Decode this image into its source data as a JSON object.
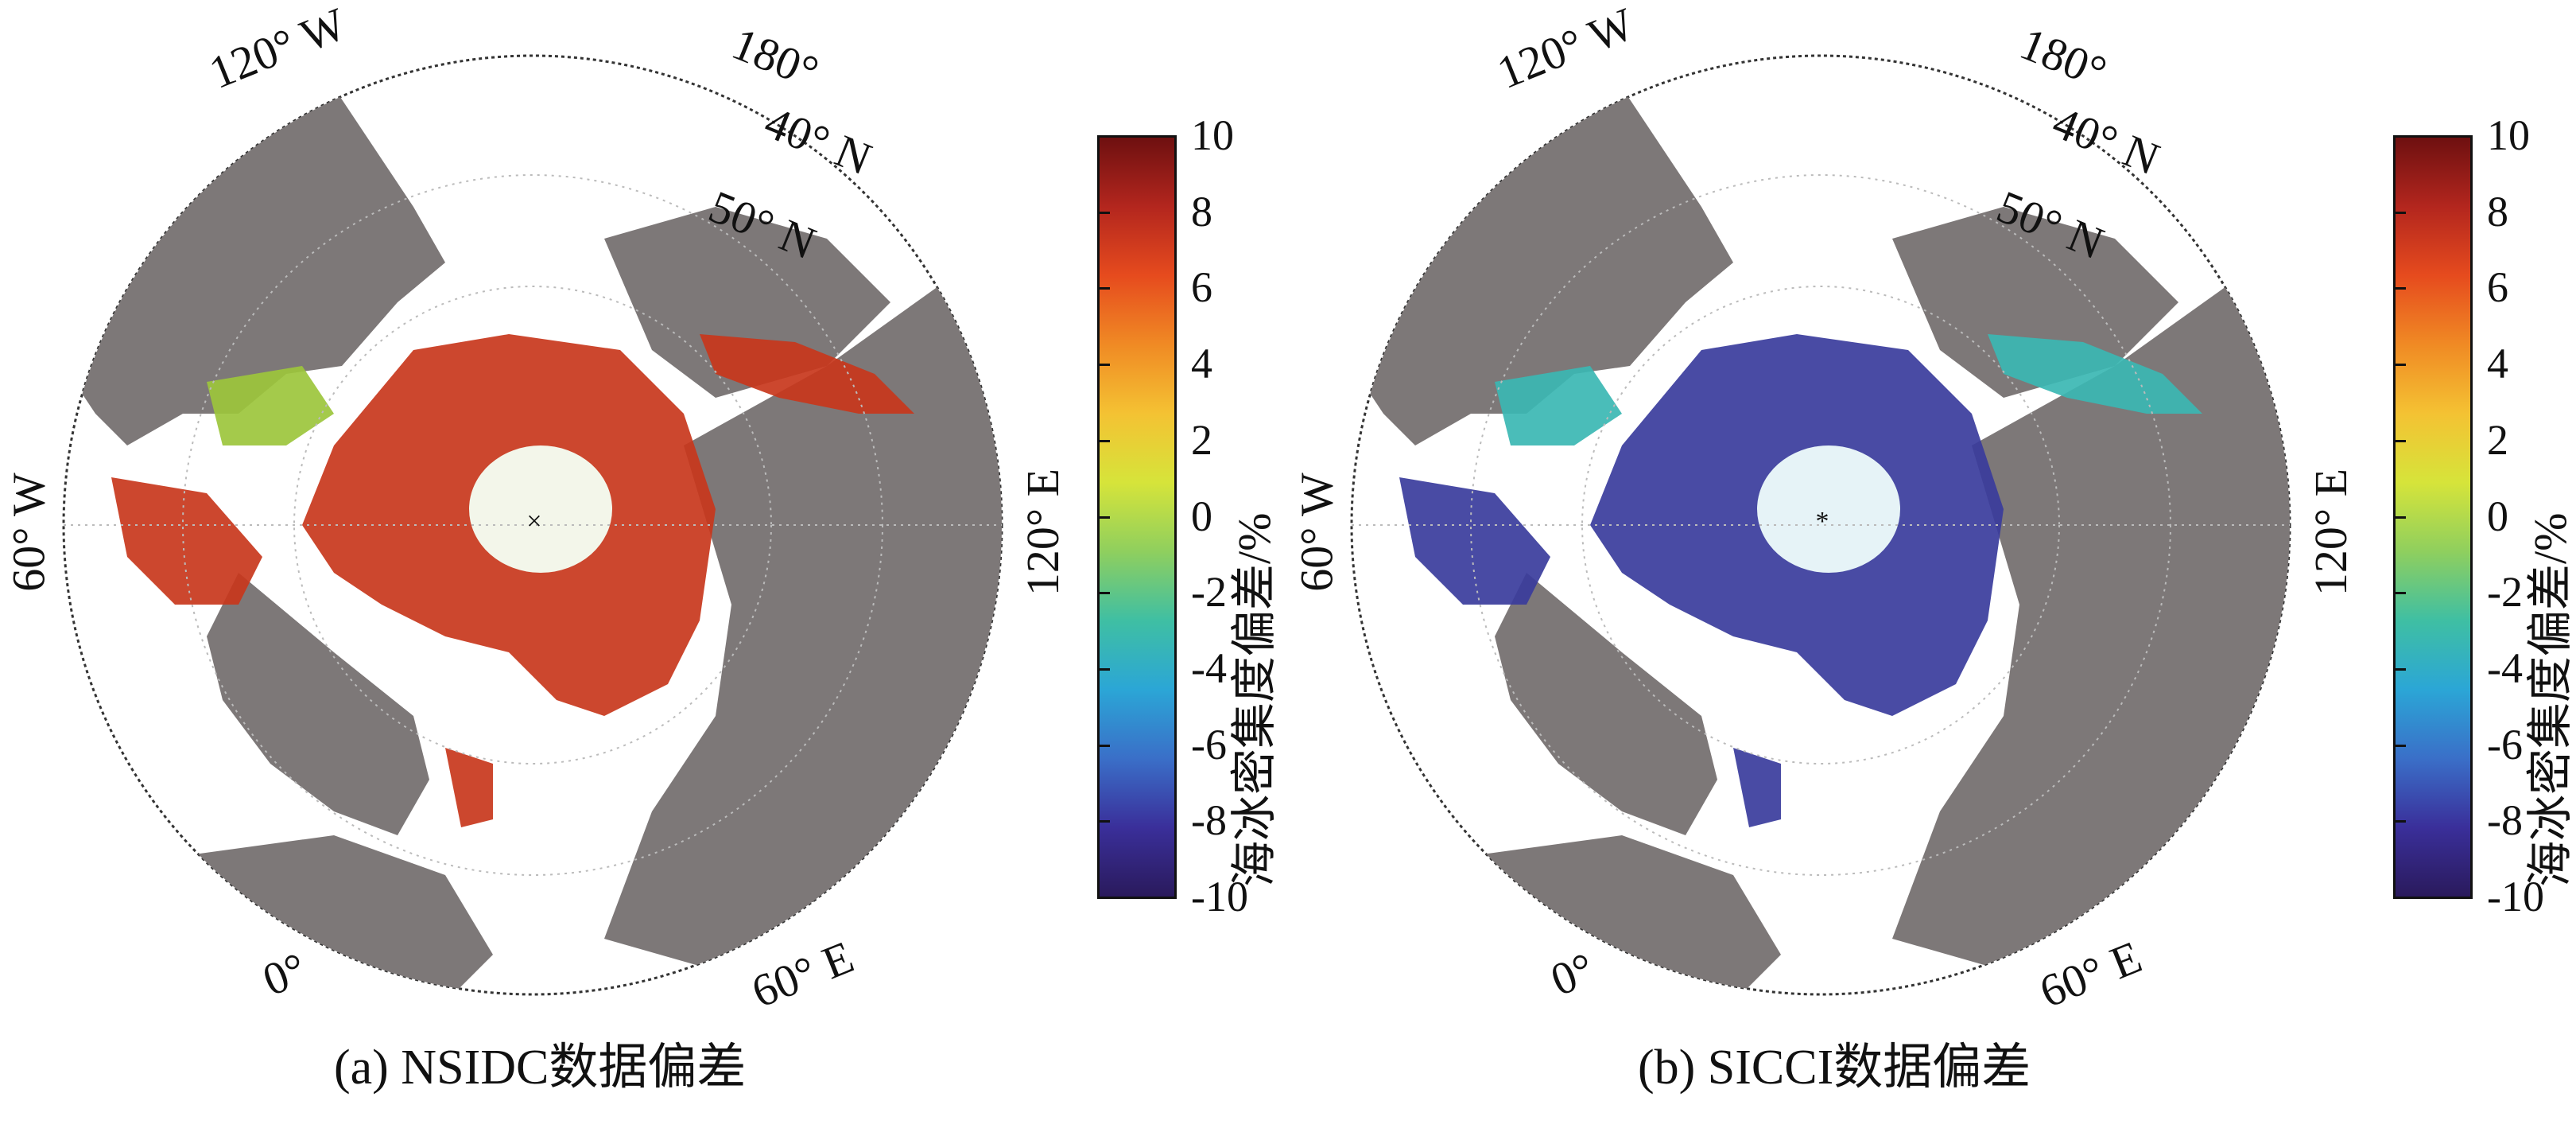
{
  "panels": [
    {
      "id": "a",
      "caption": "(a) NSIDC数据偏差",
      "labels": {
        "lon_120w": "120° W",
        "lon_180": "180°",
        "lat_40n": "40° N",
        "lat_50n": "50° N",
        "lon_60w": "60° W",
        "lon_120e": "120° E",
        "lon_0": "0°",
        "lon_60e": "60° E"
      },
      "colorbar": {
        "title": "海冰密集度偏差/%",
        "ticks": [
          "10",
          "8",
          "6",
          "4",
          "2",
          "0",
          "-2",
          "-4",
          "-6",
          "-8",
          "-10"
        ]
      },
      "palette": {
        "land": "#7d7878",
        "ice_dominant": "#c8371c",
        "ice_secondary": "#9cc63c",
        "pole_patch": "#f3f6ea"
      }
    },
    {
      "id": "b",
      "caption": "(b) SICCI数据偏差",
      "labels": {
        "lon_120w": "120° W",
        "lon_180": "180°",
        "lat_40n": "40° N",
        "lat_50n": "50° N",
        "lon_60w": "60° W",
        "lon_120e": "120° E",
        "lon_0": "0°",
        "lon_60e": "60° E"
      },
      "colorbar": {
        "title": "海冰密集度偏差/%",
        "ticks": [
          "10",
          "8",
          "6",
          "4",
          "2",
          "0",
          "-2",
          "-4",
          "-6",
          "-8",
          "-10"
        ]
      },
      "palette": {
        "land": "#7d7878",
        "ice_dominant": "#3a3c9c",
        "ice_secondary": "#3bb7b3",
        "pole_patch": "#e6f3f7"
      }
    }
  ],
  "colorscale": [
    "#6e1010",
    "#b3261e",
    "#e64b1e",
    "#f08a24",
    "#f4c233",
    "#d6e43a",
    "#8fcf5e",
    "#3fbfa3",
    "#2ba6d6",
    "#3a6fc8",
    "#3a2f9a",
    "#2a1a5c"
  ]
}
